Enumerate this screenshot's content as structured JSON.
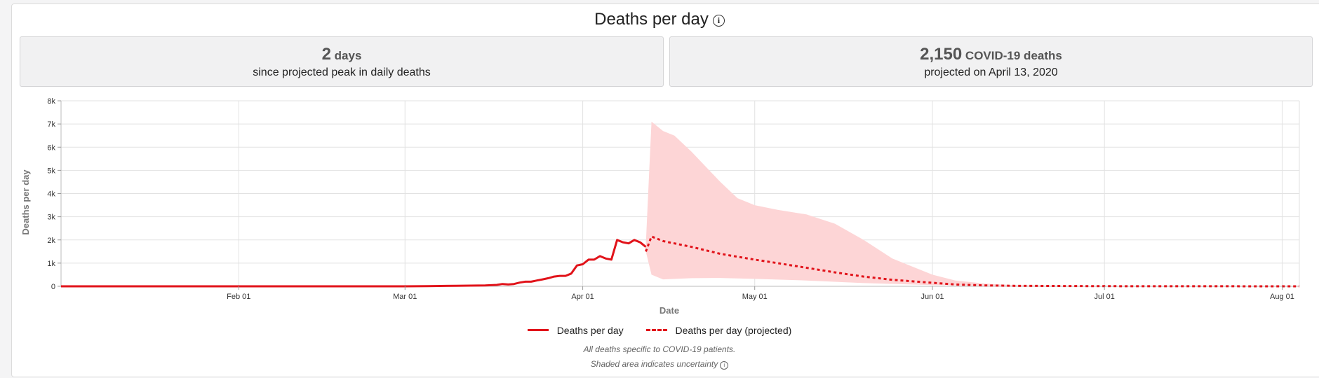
{
  "header": {
    "title": "Deaths per day"
  },
  "stats": [
    {
      "number": "2",
      "unit": "days",
      "sub": "since projected peak in daily deaths"
    },
    {
      "number": "2,150",
      "unit": "COVID-19 deaths",
      "sub": "projected on April 13, 2020"
    }
  ],
  "legend": {
    "actual": "Deaths per day",
    "projected": "Deaths per day (projected)"
  },
  "notes": {
    "line1": "All deaths specific to COVID-19 patients.",
    "line2": "Shaded area indicates uncertainty"
  },
  "colors": {
    "line": "#e1131a",
    "band": "#fdd5d6",
    "grid": "#e2e2e2"
  },
  "chart_data": {
    "type": "line",
    "title": "Deaths per day",
    "xlabel": "Date",
    "ylabel": "Deaths per day",
    "xlim": [
      "2020-01-01",
      "2020-08-04"
    ],
    "ylim": [
      0,
      8000
    ],
    "x_ticks": [
      "2020-02-01",
      "2020-03-01",
      "2020-04-01",
      "2020-05-01",
      "2020-06-01",
      "2020-07-01",
      "2020-08-01"
    ],
    "x_tick_labels": [
      "Feb 01",
      "Mar 01",
      "Apr 01",
      "May 01",
      "Jun 01",
      "Jul 01",
      "Aug 01"
    ],
    "y_ticks": [
      0,
      1000,
      2000,
      3000,
      4000,
      5000,
      6000,
      7000,
      8000
    ],
    "y_tick_labels": [
      "0",
      "1k",
      "2k",
      "3k",
      "4k",
      "5k",
      "6k",
      "7k",
      "8k"
    ],
    "grid": true,
    "legend_position": "bottom",
    "series": [
      {
        "name": "Deaths per day",
        "style": "solid",
        "points": [
          [
            "2020-01-01",
            0
          ],
          [
            "2020-03-01",
            0
          ],
          [
            "2020-03-05",
            10
          ],
          [
            "2020-03-10",
            25
          ],
          [
            "2020-03-15",
            40
          ],
          [
            "2020-03-17",
            60
          ],
          [
            "2020-03-18",
            100
          ],
          [
            "2020-03-19",
            80
          ],
          [
            "2020-03-20",
            100
          ],
          [
            "2020-03-21",
            160
          ],
          [
            "2020-03-22",
            200
          ],
          [
            "2020-03-23",
            200
          ],
          [
            "2020-03-24",
            250
          ],
          [
            "2020-03-25",
            300
          ],
          [
            "2020-03-26",
            350
          ],
          [
            "2020-03-27",
            420
          ],
          [
            "2020-03-28",
            450
          ],
          [
            "2020-03-29",
            450
          ],
          [
            "2020-03-30",
            550
          ],
          [
            "2020-03-31",
            900
          ],
          [
            "2020-04-01",
            950
          ],
          [
            "2020-04-02",
            1150
          ],
          [
            "2020-04-03",
            1150
          ],
          [
            "2020-04-04",
            1300
          ],
          [
            "2020-04-05",
            1200
          ],
          [
            "2020-04-06",
            1150
          ],
          [
            "2020-04-07",
            2000
          ],
          [
            "2020-04-08",
            1900
          ],
          [
            "2020-04-09",
            1850
          ],
          [
            "2020-04-10",
            2000
          ],
          [
            "2020-04-11",
            1900
          ],
          [
            "2020-04-12",
            1700
          ]
        ]
      },
      {
        "name": "Deaths per day (projected)",
        "style": "dotted",
        "points": [
          [
            "2020-04-12",
            1500
          ],
          [
            "2020-04-13",
            2150
          ],
          [
            "2020-04-15",
            1950
          ],
          [
            "2020-04-20",
            1700
          ],
          [
            "2020-04-25",
            1400
          ],
          [
            "2020-05-01",
            1150
          ],
          [
            "2020-05-05",
            1000
          ],
          [
            "2020-05-10",
            800
          ],
          [
            "2020-05-15",
            600
          ],
          [
            "2020-05-20",
            420
          ],
          [
            "2020-05-25",
            280
          ],
          [
            "2020-06-01",
            150
          ],
          [
            "2020-06-05",
            80
          ],
          [
            "2020-06-10",
            40
          ],
          [
            "2020-06-15",
            20
          ],
          [
            "2020-07-01",
            5
          ],
          [
            "2020-08-04",
            0
          ]
        ]
      }
    ],
    "uncertainty_band": {
      "upper": [
        [
          "2020-04-12",
          1800
        ],
        [
          "2020-04-13",
          7100
        ],
        [
          "2020-04-15",
          6700
        ],
        [
          "2020-04-17",
          6500
        ],
        [
          "2020-04-20",
          5800
        ],
        [
          "2020-04-25",
          4500
        ],
        [
          "2020-04-28",
          3800
        ],
        [
          "2020-05-01",
          3500
        ],
        [
          "2020-05-05",
          3300
        ],
        [
          "2020-05-10",
          3100
        ],
        [
          "2020-05-15",
          2700
        ],
        [
          "2020-05-20",
          2000
        ],
        [
          "2020-05-25",
          1200
        ],
        [
          "2020-06-01",
          500
        ],
        [
          "2020-06-05",
          250
        ],
        [
          "2020-06-10",
          120
        ],
        [
          "2020-06-15",
          50
        ],
        [
          "2020-07-01",
          10
        ],
        [
          "2020-08-04",
          0
        ]
      ],
      "lower": [
        [
          "2020-04-12",
          1500
        ],
        [
          "2020-04-13",
          500
        ],
        [
          "2020-04-15",
          300
        ],
        [
          "2020-04-20",
          350
        ],
        [
          "2020-04-25",
          360
        ],
        [
          "2020-05-01",
          320
        ],
        [
          "2020-05-10",
          250
        ],
        [
          "2020-05-20",
          140
        ],
        [
          "2020-06-01",
          50
        ],
        [
          "2020-06-15",
          10
        ],
        [
          "2020-08-04",
          0
        ]
      ]
    }
  }
}
